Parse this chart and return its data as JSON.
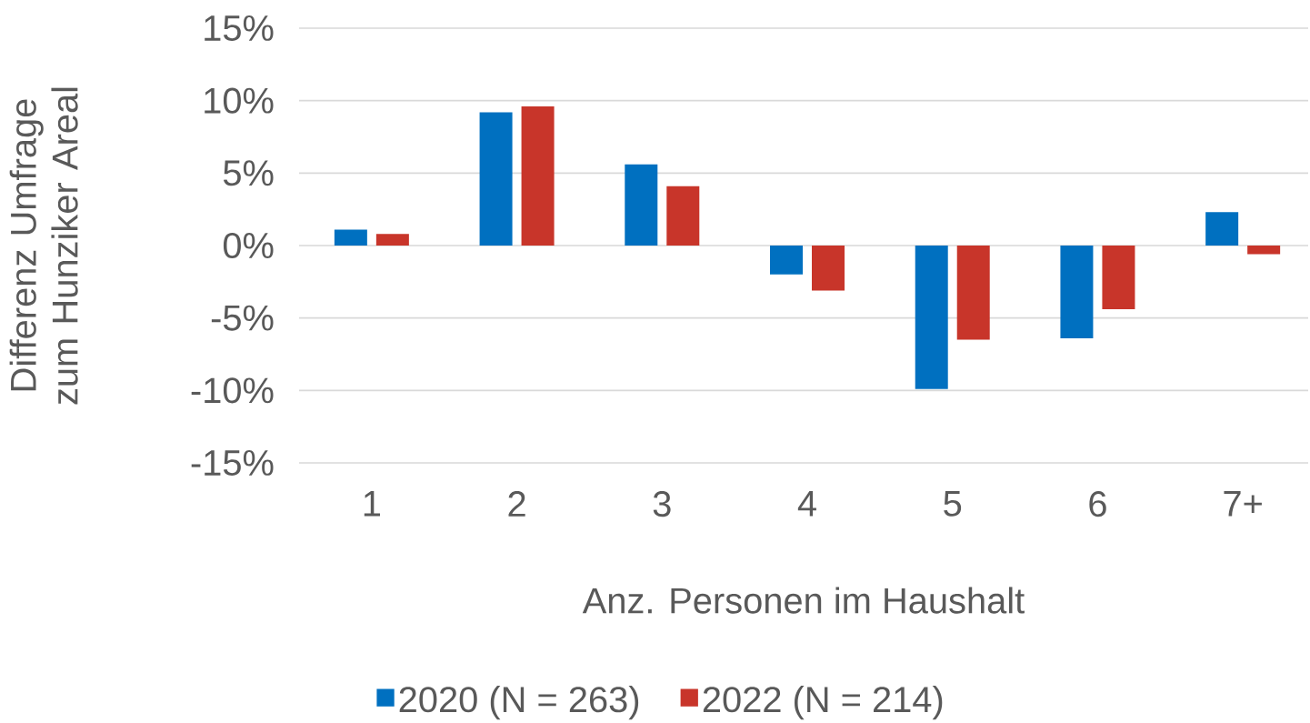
{
  "chart_data": {
    "type": "bar",
    "xlabel": "Anz. Personen im Haushalt",
    "ylabel": "Differenz Umfrage zum Hunziker Areal",
    "categories": [
      "1",
      "2",
      "3",
      "4",
      "5",
      "6",
      "7+"
    ],
    "series": [
      {
        "name": "2020 (N = 263)",
        "color": "#0070c0",
        "values": [
          1.1,
          9.2,
          5.6,
          -2.0,
          -9.9,
          -6.4,
          2.3
        ]
      },
      {
        "name": "2022 (N = 214)",
        "color": "#c8352a",
        "values": [
          0.8,
          9.6,
          4.1,
          -3.1,
          -6.5,
          -4.4,
          -0.6
        ]
      }
    ],
    "ylim": [
      -15,
      15
    ],
    "yticks": [
      {
        "value": -15,
        "label": "-15%"
      },
      {
        "value": -10,
        "label": "-10%"
      },
      {
        "value": -5,
        "label": "-5%"
      },
      {
        "value": 0,
        "label": "0%"
      },
      {
        "value": 5,
        "label": "5%"
      },
      {
        "value": 10,
        "label": "10%"
      },
      {
        "value": 15,
        "label": "15%"
      }
    ],
    "grid": "y",
    "legend": "bottom"
  }
}
